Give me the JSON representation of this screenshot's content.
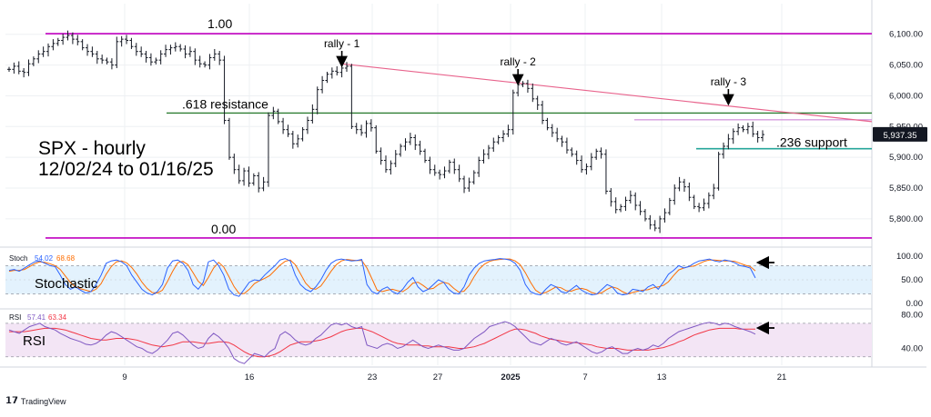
{
  "chart_data": {
    "type": "bar",
    "symbol_title": "SPX - hourly",
    "date_range": "12/02/24 to 01/16/25",
    "y_axis": {
      "ticks": [
        "6,100.00",
        "6,050.00",
        "6,000.00",
        "5,950.00",
        "5,900.00",
        "5,850.00",
        "5,800.00"
      ],
      "tick_values": [
        6100,
        6050,
        6000,
        5950,
        5900,
        5850,
        5800
      ],
      "ylim": [
        5760,
        6135
      ]
    },
    "x_axis": {
      "ticks": [
        "9",
        "16",
        "23",
        "27",
        "2025",
        "7",
        "13",
        "21"
      ],
      "bold_tick": "2025"
    },
    "last_price": {
      "label": "5,937.35",
      "value": 5937.35
    },
    "closes": [
      6043,
      6048,
      6040,
      6038,
      6052,
      6060,
      6068,
      6072,
      6080,
      6085,
      6090,
      6095,
      6098,
      6092,
      6088,
      6078,
      6072,
      6068,
      6060,
      6058,
      6055,
      6050,
      6088,
      6092,
      6090,
      6080,
      6072,
      6068,
      6062,
      6055,
      6058,
      6068,
      6075,
      6078,
      6080,
      6076,
      6068,
      6072,
      6058,
      6052,
      6050,
      6062,
      6068,
      6058,
      5960,
      5900,
      5880,
      5862,
      5878,
      5858,
      5870,
      5850,
      5860,
      5968,
      5975,
      5958,
      5945,
      5938,
      5922,
      5930,
      5945,
      5960,
      5978,
      6010,
      6025,
      6035,
      6040,
      6038,
      6045,
      6048,
      5950,
      5945,
      5940,
      5955,
      5948,
      5910,
      5895,
      5880,
      5890,
      5905,
      5918,
      5925,
      5932,
      5920,
      5910,
      5895,
      5880,
      5875,
      5872,
      5878,
      5892,
      5880,
      5865,
      5850,
      5860,
      5875,
      5895,
      5905,
      5915,
      5925,
      5932,
      5938,
      5945,
      6005,
      6018,
      6020,
      6012,
      5995,
      5985,
      5960,
      5948,
      5940,
      5930,
      5925,
      5912,
      5905,
      5895,
      5880,
      5885,
      5900,
      5910,
      5905,
      5845,
      5828,
      5815,
      5820,
      5830,
      5838,
      5822,
      5812,
      5800,
      5790,
      5785,
      5800,
      5810,
      5830,
      5850,
      5860,
      5852,
      5835,
      5820,
      5818,
      5825,
      5838,
      5850,
      5905,
      5918,
      5930,
      5942,
      5948,
      5945,
      5950,
      5938,
      5932,
      5937
    ],
    "horizontal_levels": [
      {
        "label": "1.00",
        "value": 6101,
        "color": "#c000c0"
      },
      {
        "label": ".618 resistance",
        "value": 5972,
        "color": "#2e7d32"
      },
      {
        "label": ".236 support",
        "value": 5914,
        "color": "#26a69a"
      },
      {
        "label": "0.00",
        "value": 5769,
        "color": "#c000c0"
      }
    ],
    "extra_levels": [
      {
        "value": 5961,
        "color": "#c878d0"
      }
    ],
    "trendline": {
      "from": {
        "bar": 68,
        "value": 6052
      },
      "to": {
        "bar": 175,
        "value": 5958
      },
      "color": "#e8638c"
    },
    "rallies": [
      {
        "label": "rally - 1",
        "bar": 68
      },
      {
        "label": "rally - 2",
        "bar": 104
      },
      {
        "label": "rally - 3",
        "bar": 147
      }
    ],
    "stochastic": {
      "header": "Stoch",
      "k_value_label": "54.02",
      "d_value_label": "68.68",
      "panel_label": "Stochastic",
      "axis_ticks": [
        "100.00",
        "50.00",
        "0.00"
      ],
      "axis_values": [
        100,
        50,
        0
      ],
      "bands": [
        80,
        20
      ],
      "k_color": "#2962ff",
      "d_color": "#ff6d00",
      "band_fill": "#e3f2fd",
      "k_values": [
        70,
        72,
        68,
        75,
        82,
        88,
        90,
        85,
        80,
        78,
        60,
        40,
        30,
        35,
        28,
        22,
        25,
        40,
        60,
        85,
        90,
        92,
        88,
        80,
        60,
        45,
        30,
        22,
        18,
        25,
        40,
        75,
        90,
        92,
        85,
        70,
        40,
        30,
        45,
        88,
        92,
        80,
        60,
        30,
        18,
        15,
        30,
        45,
        50,
        48,
        60,
        70,
        80,
        92,
        95,
        90,
        60,
        40,
        30,
        25,
        35,
        50,
        70,
        85,
        92,
        94,
        92,
        90,
        91,
        93,
        40,
        25,
        20,
        30,
        35,
        25,
        20,
        30,
        45,
        55,
        35,
        25,
        30,
        40,
        50,
        45,
        30,
        22,
        20,
        35,
        60,
        75,
        85,
        90,
        92,
        93,
        95,
        94,
        92,
        85,
        70,
        40,
        25,
        20,
        18,
        30,
        40,
        35,
        25,
        22,
        30,
        38,
        28,
        22,
        18,
        20,
        30,
        40,
        35,
        22,
        18,
        20,
        30,
        28,
        25,
        35,
        40,
        30,
        45,
        62,
        70,
        80,
        75,
        78,
        85,
        90,
        92,
        94,
        90,
        88,
        92,
        90,
        86,
        80,
        78,
        75,
        54
      ],
      "d_values": [
        68,
        70,
        70,
        72,
        78,
        84,
        88,
        87,
        84,
        80,
        72,
        58,
        44,
        35,
        31,
        28,
        25,
        30,
        42,
        62,
        78,
        88,
        90,
        86,
        76,
        62,
        45,
        32,
        23,
        22,
        28,
        47,
        68,
        86,
        89,
        82,
        65,
        47,
        38,
        55,
        75,
        87,
        77,
        57,
        36,
        21,
        21,
        30,
        42,
        48,
        53,
        59,
        70,
        81,
        89,
        92,
        82,
        63,
        43,
        32,
        30,
        37,
        52,
        68,
        82,
        90,
        93,
        92,
        91,
        91,
        75,
        52,
        28,
        25,
        28,
        30,
        27,
        25,
        32,
        43,
        45,
        38,
        30,
        32,
        40,
        45,
        42,
        32,
        24,
        26,
        38,
        57,
        73,
        83,
        89,
        92,
        93,
        94,
        94,
        90,
        82,
        65,
        45,
        28,
        21,
        23,
        29,
        35,
        33,
        27,
        26,
        30,
        32,
        29,
        23,
        20,
        23,
        30,
        35,
        32,
        25,
        20,
        23,
        26,
        28,
        29,
        33,
        35,
        38,
        46,
        59,
        71,
        75,
        78,
        79,
        84,
        89,
        92,
        92,
        91,
        90,
        90,
        89,
        85,
        81,
        78,
        69
      ]
    },
    "rsi": {
      "header": "RSI",
      "value_label": "57.41",
      "ma_value_label": "63.34",
      "panel_label": "RSI",
      "axis_ticks": [
        "80.00",
        "40.00"
      ],
      "axis_values": [
        80,
        40
      ],
      "ylim": [
        20,
        85
      ],
      "bands": [
        70,
        30
      ],
      "rsi_color": "#7e57c2",
      "ma_color": "#f23645",
      "band_fill": "#f3e5f5",
      "rsi_values": [
        62,
        60,
        58,
        62,
        66,
        68,
        70,
        66,
        64,
        62,
        58,
        55,
        52,
        50,
        48,
        45,
        44,
        46,
        50,
        56,
        60,
        58,
        54,
        50,
        46,
        42,
        40,
        36,
        34,
        38,
        44,
        50,
        58,
        60,
        56,
        50,
        44,
        40,
        42,
        52,
        58,
        54,
        48,
        40,
        28,
        24,
        22,
        28,
        34,
        32,
        30,
        36,
        40,
        56,
        60,
        56,
        50,
        46,
        44,
        46,
        52,
        56,
        62,
        68,
        70,
        68,
        70,
        66,
        64,
        66,
        44,
        42,
        40,
        44,
        46,
        44,
        40,
        42,
        46,
        50,
        46,
        42,
        40,
        42,
        44,
        42,
        40,
        38,
        38,
        40,
        46,
        52,
        56,
        60,
        66,
        68,
        70,
        72,
        70,
        66,
        60,
        54,
        48,
        46,
        44,
        48,
        52,
        50,
        46,
        44,
        46,
        48,
        44,
        40,
        36,
        34,
        36,
        40,
        42,
        38,
        34,
        34,
        38,
        40,
        38,
        40,
        44,
        42,
        46,
        52,
        56,
        60,
        62,
        64,
        66,
        68,
        70,
        71,
        70,
        68,
        70,
        69,
        66,
        64,
        62,
        60,
        57
      ],
      "ma_values": [
        60,
        60,
        60,
        60,
        61,
        62,
        63,
        64,
        64,
        64,
        63,
        62,
        60,
        58,
        56,
        54,
        52,
        51,
        50,
        50,
        51,
        52,
        52,
        52,
        51,
        50,
        48,
        46,
        44,
        43,
        42,
        43,
        44,
        46,
        48,
        48,
        48,
        47,
        46,
        46,
        47,
        48,
        48,
        47,
        44,
        40,
        36,
        33,
        31,
        30,
        30,
        31,
        33,
        36,
        40,
        44,
        46,
        48,
        48,
        48,
        49,
        50,
        52,
        54,
        57,
        60,
        62,
        63,
        64,
        64,
        62,
        60,
        57,
        54,
        51,
        48,
        46,
        45,
        44,
        44,
        44,
        43,
        43,
        42,
        42,
        42,
        42,
        41,
        40,
        40,
        41,
        42,
        44,
        46,
        49,
        52,
        55,
        58,
        61,
        63,
        63,
        62,
        60,
        58,
        55,
        53,
        51,
        50,
        49,
        48,
        47,
        47,
        46,
        45,
        44,
        42,
        41,
        40,
        40,
        40,
        39,
        38,
        38,
        38,
        38,
        38,
        39,
        40,
        41,
        43,
        45,
        48,
        50,
        53,
        56,
        58,
        60,
        62,
        63,
        64,
        64,
        64,
        64,
        63,
        63,
        63,
        63
      ]
    }
  },
  "branding": {
    "label": "TradingView"
  }
}
